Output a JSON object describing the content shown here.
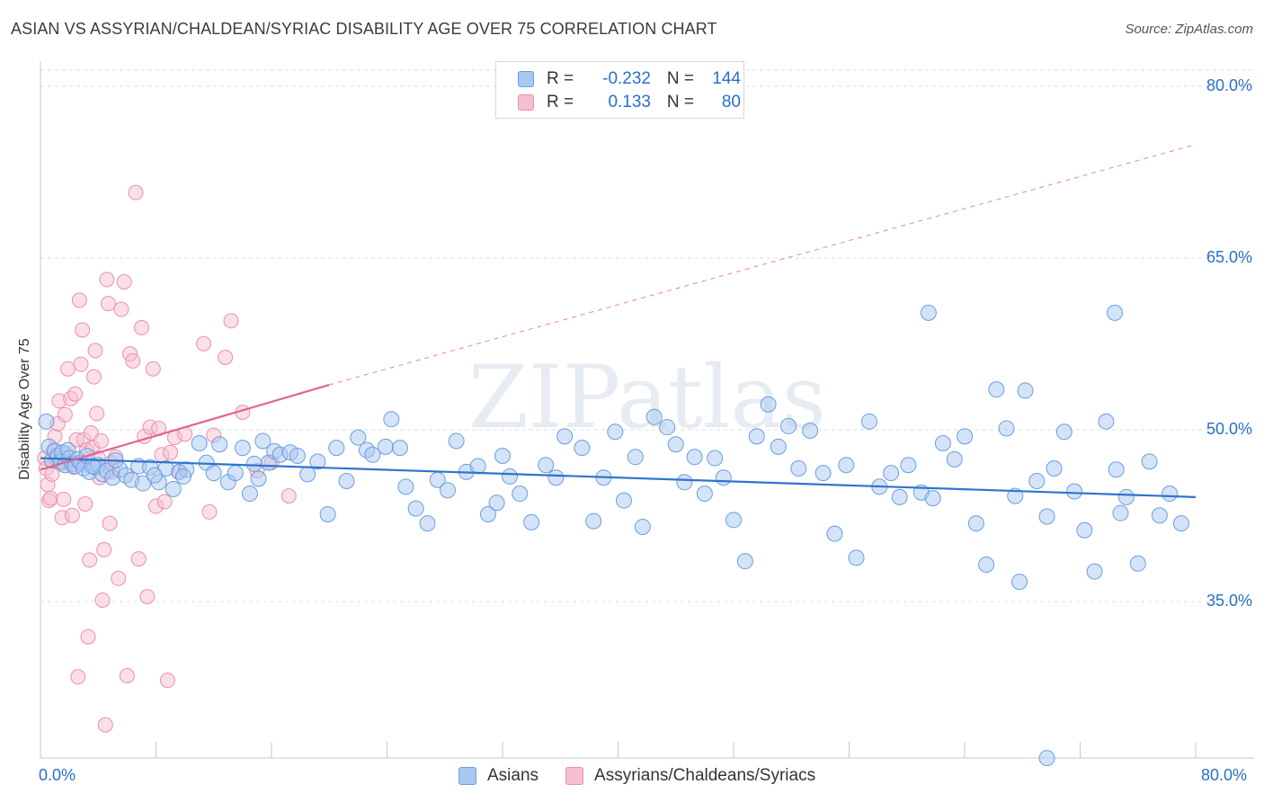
{
  "title": "ASIAN VS ASSYRIAN/CHALDEAN/SYRIAC DISABILITY AGE OVER 75 CORRELATION CHART",
  "source": "Source: ZipAtlas.com",
  "watermark": "ZIPatlas",
  "colors": {
    "blue_fill": "#a9c8ef",
    "blue_stroke": "#6a9fdf",
    "blue_line": "#2f74cf",
    "pink_fill": "#f6bfd0",
    "pink_stroke": "#ec8fac",
    "pink_line": "#e2648f",
    "accent_text": "#2a6fc9",
    "grid": "#dedede"
  },
  "legend": {
    "rows": [
      {
        "r_label": "R =",
        "r_value": "-0.232",
        "n_label": "N =",
        "n_value": "144"
      },
      {
        "r_label": "R =",
        "r_value": "0.133",
        "n_label": "N =",
        "n_value": "80"
      }
    ]
  },
  "bottom_legend": [
    "Asians",
    "Assyrians/Chaldeans/Syriacs"
  ],
  "chart_data": {
    "type": "scatter",
    "title": "ASIAN VS ASSYRIAN/CHALDEAN/SYRIAC DISABILITY AGE OVER 75 CORRELATION CHART",
    "xlabel": "",
    "ylabel": "Disability Age Over 75",
    "xlim": [
      0,
      80
    ],
    "ylim": [
      20,
      80
    ],
    "x_tick_labels": [
      "0.0%",
      "80.0%"
    ],
    "y_tick_labels": [
      "35.0%",
      "50.0%",
      "65.0%",
      "80.0%"
    ],
    "y_ticks": [
      35,
      50,
      65,
      80
    ],
    "grid": true,
    "legend_placement": "top-center",
    "series": [
      {
        "name": "Asians",
        "r": -0.232,
        "n": 144,
        "trend": {
          "x": [
            0,
            80
          ],
          "y": [
            47.6,
            44.2
          ],
          "style": "solid"
        },
        "points": [
          [
            0.4,
            50.8
          ],
          [
            0.6,
            48.6
          ],
          [
            0.8,
            47.4
          ],
          [
            1.0,
            48.2
          ],
          [
            1.2,
            47.8
          ],
          [
            1.4,
            47.3
          ],
          [
            1.5,
            48.1
          ],
          [
            1.7,
            47.0
          ],
          [
            1.9,
            48.3
          ],
          [
            2.0,
            47.6
          ],
          [
            2.2,
            47.1
          ],
          [
            2.4,
            46.9
          ],
          [
            2.6,
            47.5
          ],
          [
            2.8,
            47.2
          ],
          [
            3.0,
            46.7
          ],
          [
            3.2,
            47.8
          ],
          [
            3.4,
            46.4
          ],
          [
            3.8,
            46.8
          ],
          [
            4.0,
            47.0
          ],
          [
            4.3,
            46.2
          ],
          [
            4.6,
            46.5
          ],
          [
            5.0,
            45.9
          ],
          [
            5.5,
            46.6
          ],
          [
            5.9,
            46.1
          ],
          [
            6.3,
            45.7
          ],
          [
            6.8,
            46.9
          ],
          [
            7.1,
            45.4
          ],
          [
            7.6,
            46.8
          ],
          [
            8.2,
            45.5
          ],
          [
            8.7,
            46.7
          ],
          [
            9.2,
            44.9
          ],
          [
            9.6,
            46.4
          ],
          [
            10.1,
            46.6
          ],
          [
            11.0,
            48.9
          ],
          [
            11.5,
            47.2
          ],
          [
            12.0,
            46.3
          ],
          [
            12.4,
            48.8
          ],
          [
            13.0,
            45.5
          ],
          [
            13.5,
            46.3
          ],
          [
            14.0,
            48.5
          ],
          [
            14.5,
            44.5
          ],
          [
            14.8,
            47.1
          ],
          [
            15.1,
            45.8
          ],
          [
            15.4,
            49.1
          ],
          [
            15.8,
            47.2
          ],
          [
            16.2,
            48.2
          ],
          [
            16.6,
            47.9
          ],
          [
            17.3,
            48.1
          ],
          [
            17.8,
            47.8
          ],
          [
            18.5,
            46.2
          ],
          [
            19.2,
            47.3
          ],
          [
            19.9,
            42.7
          ],
          [
            20.5,
            48.5
          ],
          [
            21.2,
            45.6
          ],
          [
            22.0,
            49.4
          ],
          [
            22.6,
            48.3
          ],
          [
            23.0,
            47.9
          ],
          [
            23.9,
            48.6
          ],
          [
            24.3,
            51.0
          ],
          [
            24.9,
            48.5
          ],
          [
            25.3,
            45.1
          ],
          [
            26.0,
            43.2
          ],
          [
            26.8,
            41.9
          ],
          [
            27.5,
            45.7
          ],
          [
            28.2,
            44.8
          ],
          [
            28.8,
            49.1
          ],
          [
            29.5,
            46.4
          ],
          [
            30.3,
            46.9
          ],
          [
            31.0,
            42.7
          ],
          [
            31.6,
            43.7
          ],
          [
            32.0,
            47.8
          ],
          [
            32.5,
            46.0
          ],
          [
            33.2,
            44.5
          ],
          [
            34.0,
            42.0
          ],
          [
            35.0,
            47.0
          ],
          [
            35.7,
            45.9
          ],
          [
            36.3,
            49.5
          ],
          [
            37.5,
            48.5
          ],
          [
            38.3,
            42.1
          ],
          [
            39.0,
            45.9
          ],
          [
            39.8,
            49.9
          ],
          [
            40.4,
            43.9
          ],
          [
            41.2,
            47.7
          ],
          [
            41.7,
            41.6
          ],
          [
            42.5,
            51.2
          ],
          [
            43.4,
            50.3
          ],
          [
            44.0,
            48.8
          ],
          [
            44.6,
            45.5
          ],
          [
            45.3,
            47.7
          ],
          [
            46.0,
            44.5
          ],
          [
            46.7,
            47.6
          ],
          [
            47.3,
            45.9
          ],
          [
            48.0,
            42.2
          ],
          [
            48.8,
            38.6
          ],
          [
            49.6,
            49.5
          ],
          [
            50.4,
            52.3
          ],
          [
            51.1,
            48.6
          ],
          [
            51.8,
            50.4
          ],
          [
            52.5,
            46.7
          ],
          [
            53.3,
            50.0
          ],
          [
            54.2,
            46.3
          ],
          [
            55.0,
            41.0
          ],
          [
            55.8,
            47.0
          ],
          [
            56.5,
            38.9
          ],
          [
            57.4,
            50.8
          ],
          [
            58.1,
            45.1
          ],
          [
            58.9,
            46.3
          ],
          [
            59.5,
            44.2
          ],
          [
            60.1,
            47.0
          ],
          [
            61.0,
            44.6
          ],
          [
            61.8,
            44.1
          ],
          [
            62.5,
            48.9
          ],
          [
            63.3,
            47.5
          ],
          [
            64.0,
            49.5
          ],
          [
            64.8,
            41.9
          ],
          [
            65.5,
            38.3
          ],
          [
            66.2,
            53.6
          ],
          [
            66.9,
            50.2
          ],
          [
            67.5,
            44.3
          ],
          [
            68.2,
            53.5
          ],
          [
            69.0,
            45.6
          ],
          [
            69.7,
            42.5
          ],
          [
            70.2,
            46.7
          ],
          [
            70.9,
            49.9
          ],
          [
            71.6,
            44.7
          ],
          [
            72.3,
            41.3
          ],
          [
            73.0,
            37.7
          ],
          [
            73.8,
            50.8
          ],
          [
            74.5,
            46.6
          ],
          [
            75.2,
            44.2
          ],
          [
            76.0,
            38.4
          ],
          [
            76.8,
            47.3
          ],
          [
            77.5,
            42.6
          ],
          [
            78.2,
            44.5
          ],
          [
            79.0,
            41.9
          ],
          [
            61.5,
            60.3
          ],
          [
            74.4,
            60.3
          ],
          [
            69.7,
            21.4
          ],
          [
            67.8,
            36.8
          ],
          [
            74.8,
            42.8
          ],
          [
            3.6,
            46.9
          ],
          [
            7.9,
            46.1
          ],
          [
            5.2,
            47.4
          ],
          [
            9.9,
            46.0
          ]
        ]
      },
      {
        "name": "Assyrians/Chaldeans/Syriacs",
        "r": 0.133,
        "n": 80,
        "trend_solid": {
          "x": [
            0,
            20
          ],
          "y": [
            46.6,
            54.0
          ]
        },
        "trend_dashed": {
          "x": [
            20,
            80
          ],
          "y": [
            54.0,
            75.0
          ]
        },
        "points": [
          [
            0.3,
            47.6
          ],
          [
            0.4,
            46.7
          ],
          [
            0.5,
            45.3
          ],
          [
            0.6,
            43.9
          ],
          [
            0.7,
            44.1
          ],
          [
            0.8,
            46.2
          ],
          [
            0.9,
            48.3
          ],
          [
            1.0,
            49.5
          ],
          [
            1.1,
            47.5
          ],
          [
            1.2,
            50.6
          ],
          [
            1.3,
            52.6
          ],
          [
            1.4,
            47.1
          ],
          [
            1.5,
            42.4
          ],
          [
            1.6,
            44.0
          ],
          [
            1.7,
            51.4
          ],
          [
            1.8,
            48.0
          ],
          [
            1.9,
            55.4
          ],
          [
            2.0,
            47.3
          ],
          [
            2.1,
            52.8
          ],
          [
            2.2,
            42.6
          ],
          [
            2.3,
            46.8
          ],
          [
            2.4,
            53.2
          ],
          [
            2.5,
            49.2
          ],
          [
            2.6,
            28.5
          ],
          [
            2.7,
            61.4
          ],
          [
            2.8,
            55.8
          ],
          [
            2.9,
            58.8
          ],
          [
            3.0,
            49.2
          ],
          [
            3.1,
            43.6
          ],
          [
            3.2,
            48.3
          ],
          [
            3.3,
            32.0
          ],
          [
            3.4,
            38.7
          ],
          [
            3.5,
            49.8
          ],
          [
            3.6,
            48.5
          ],
          [
            3.7,
            54.7
          ],
          [
            3.8,
            57.0
          ],
          [
            3.9,
            51.5
          ],
          [
            4.0,
            47.6
          ],
          [
            4.1,
            45.9
          ],
          [
            4.2,
            49.1
          ],
          [
            4.3,
            35.2
          ],
          [
            4.4,
            39.6
          ],
          [
            4.5,
            24.3
          ],
          [
            4.6,
            63.2
          ],
          [
            4.7,
            61.1
          ],
          [
            4.8,
            41.9
          ],
          [
            4.9,
            47.2
          ],
          [
            5.0,
            46.4
          ],
          [
            5.2,
            47.7
          ],
          [
            5.4,
            37.1
          ],
          [
            5.6,
            60.6
          ],
          [
            5.8,
            63.0
          ],
          [
            6.0,
            28.6
          ],
          [
            6.2,
            56.7
          ],
          [
            6.4,
            56.1
          ],
          [
            6.6,
            70.8
          ],
          [
            6.8,
            38.8
          ],
          [
            7.0,
            59.0
          ],
          [
            7.2,
            49.5
          ],
          [
            7.4,
            35.5
          ],
          [
            7.6,
            50.3
          ],
          [
            7.8,
            55.4
          ],
          [
            8.0,
            43.4
          ],
          [
            8.2,
            50.2
          ],
          [
            8.4,
            47.9
          ],
          [
            8.6,
            43.8
          ],
          [
            8.8,
            28.2
          ],
          [
            9.0,
            48.1
          ],
          [
            9.3,
            49.4
          ],
          [
            9.6,
            46.4
          ],
          [
            10.0,
            49.7
          ],
          [
            11.3,
            57.6
          ],
          [
            11.7,
            42.9
          ],
          [
            12.0,
            49.6
          ],
          [
            12.8,
            56.4
          ],
          [
            13.2,
            59.6
          ],
          [
            14.0,
            51.6
          ],
          [
            15.0,
            46.5
          ],
          [
            16.0,
            47.2
          ],
          [
            17.2,
            44.3
          ]
        ]
      }
    ]
  }
}
